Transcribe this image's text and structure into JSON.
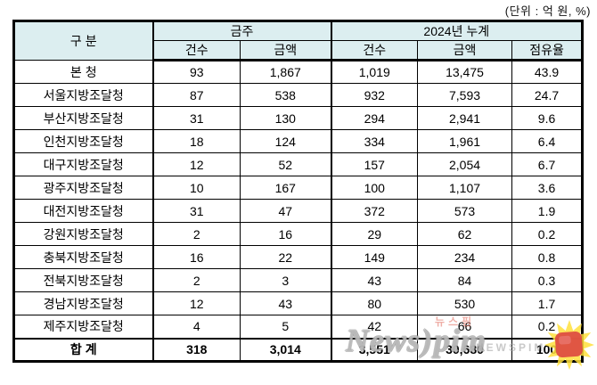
{
  "unit_label": "(단위 : 억 원, %)",
  "table": {
    "corner_header": "구 분",
    "groups": [
      "금주",
      "2024년 누계"
    ],
    "sub_headers": [
      "건수",
      "금액",
      "건수",
      "금액",
      "점유율"
    ],
    "rows": [
      {
        "label": "본   청",
        "values": [
          "93",
          "1,867",
          "1,019",
          "13,475",
          "43.9"
        ]
      },
      {
        "label": "서울지방조달청",
        "values": [
          "87",
          "538",
          "932",
          "7,593",
          "24.7"
        ]
      },
      {
        "label": "부산지방조달청",
        "values": [
          "31",
          "130",
          "294",
          "2,941",
          "9.6"
        ]
      },
      {
        "label": "인천지방조달청",
        "values": [
          "18",
          "124",
          "334",
          "1,961",
          "6.4"
        ]
      },
      {
        "label": "대구지방조달청",
        "values": [
          "12",
          "52",
          "157",
          "2,054",
          "6.7"
        ]
      },
      {
        "label": "광주지방조달청",
        "values": [
          "10",
          "167",
          "100",
          "1,107",
          "3.6"
        ]
      },
      {
        "label": "대전지방조달청",
        "values": [
          "31",
          "47",
          "372",
          "573",
          "1.9"
        ]
      },
      {
        "label": "강원지방조달청",
        "values": [
          "2",
          "16",
          "29",
          "62",
          "0.2"
        ]
      },
      {
        "label": "충북지방조달청",
        "values": [
          "16",
          "22",
          "149",
          "234",
          "0.8"
        ]
      },
      {
        "label": "전북지방조달청",
        "values": [
          "2",
          "3",
          "43",
          "84",
          "0.3"
        ]
      },
      {
        "label": "경남지방조달청",
        "values": [
          "12",
          "43",
          "80",
          "530",
          "1.7"
        ]
      },
      {
        "label": "제주지방조달청",
        "values": [
          "4",
          "5",
          "42",
          "66",
          "0.2"
        ]
      }
    ],
    "total_row": {
      "label": "합   계",
      "values": [
        "318",
        "3,014",
        "3,551",
        "30,680",
        "100"
      ]
    }
  },
  "watermark": {
    "brand_main": "News",
    "brand_swoosh": ")",
    "brand_tail": "pim",
    "brand_korean": "뉴스핌",
    "brand_caps": "NEWSPIM"
  },
  "colors": {
    "header_bg": "#dceef0",
    "border": "#000000",
    "stamp_red": "#dd4a41",
    "burst_yellow": "#ffe13c"
  }
}
